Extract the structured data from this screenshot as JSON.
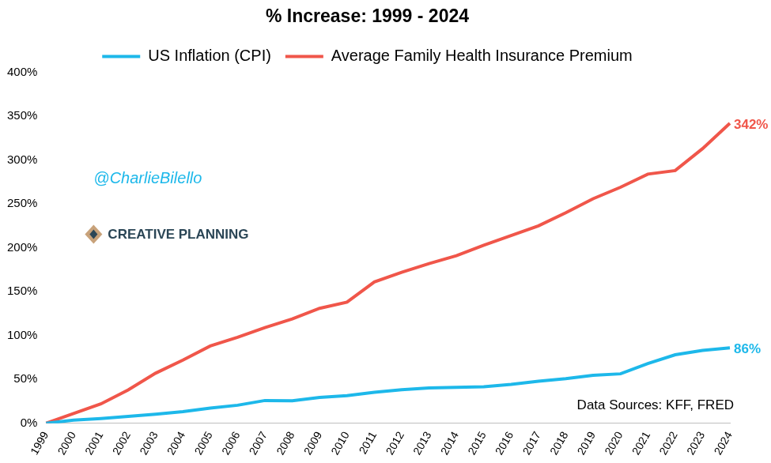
{
  "chart_data": {
    "type": "line",
    "title": "% Increase: 1999 - 2024",
    "categories": [
      "1999",
      "2000",
      "2001",
      "2002",
      "2003",
      "2004",
      "2005",
      "2006",
      "2007",
      "2008",
      "2009",
      "2010",
      "2011",
      "2012",
      "2013",
      "2014",
      "2015",
      "2016",
      "2017",
      "2018",
      "2019",
      "2020",
      "2021",
      "2022",
      "2023",
      "2024"
    ],
    "series": [
      {
        "name": "US Inflation (CPI)",
        "color": "#1db8ea",
        "values": [
          0,
          3.4,
          5.3,
          7.8,
          10.2,
          13.2,
          17.2,
          20.5,
          25.9,
          25.6,
          29.3,
          31.5,
          35.3,
          38.2,
          40.2,
          40.9,
          41.6,
          44.3,
          47.9,
          50.8,
          54.6,
          56.3,
          68,
          78,
          83,
          86
        ],
        "value_labels": [
          null,
          null,
          null,
          null,
          null,
          null,
          null,
          null,
          null,
          null,
          null,
          null,
          null,
          null,
          null,
          null,
          null,
          null,
          null,
          null,
          null,
          null,
          null,
          null,
          null,
          "86%"
        ]
      },
      {
        "name": "Average Family Health Insurance Premium",
        "color": "#f0564a",
        "values": [
          0,
          11,
          22,
          38,
          57,
          72,
          88,
          98,
          109,
          119,
          131,
          138,
          161,
          172,
          182,
          191,
          203,
          214,
          225,
          240,
          256,
          269,
          284,
          288,
          313,
          342
        ],
        "value_labels": [
          null,
          null,
          null,
          null,
          null,
          null,
          null,
          null,
          null,
          null,
          null,
          null,
          null,
          null,
          null,
          null,
          null,
          null,
          null,
          null,
          null,
          null,
          null,
          null,
          null,
          "342%"
        ]
      }
    ],
    "ylim": [
      0,
      400
    ],
    "yticks": [
      {
        "value": 0,
        "label": "0%"
      },
      {
        "value": 50,
        "label": "50%"
      },
      {
        "value": 100,
        "label": "100%"
      },
      {
        "value": 150,
        "label": "150%"
      },
      {
        "value": 200,
        "label": "200%"
      },
      {
        "value": 250,
        "label": "250%"
      },
      {
        "value": 300,
        "label": "300%"
      },
      {
        "value": 350,
        "label": "350%"
      },
      {
        "value": 400,
        "label": "400%"
      }
    ],
    "grid": false,
    "legend": "top",
    "data_labels": true,
    "annotations": [
      {
        "text": "@CharlieBilello",
        "color": "#1db8ea"
      },
      {
        "text": "CREATIVE PLANNING",
        "color": "#2b4656"
      },
      {
        "text": "Data Sources: KFF, FRED",
        "color": "#000000"
      }
    ]
  }
}
